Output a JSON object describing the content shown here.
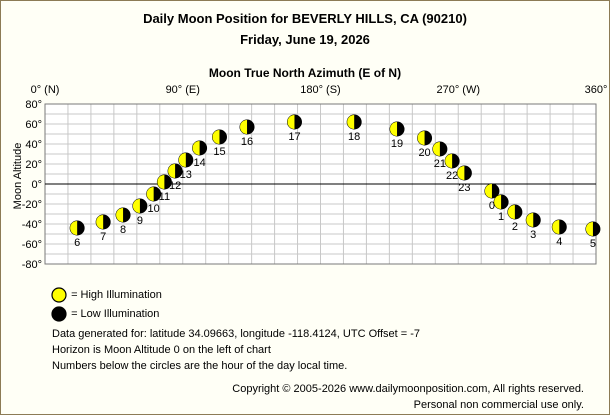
{
  "header": {
    "title": "Daily Moon Position for BEVERLY HILLS, CA (90210)",
    "date": "Friday, June 19, 2026"
  },
  "chart_data": {
    "type": "scatter",
    "title": "Daily Moon Position for BEVERLY HILLS, CA (90210)",
    "subtitle": "Friday, June 19, 2026",
    "xlabel": "Moon True North Azimuth (E of N)",
    "ylabel": "Moon Altitude",
    "xlim": [
      0,
      360
    ],
    "ylim": [
      -80,
      80
    ],
    "x_ticks": [
      {
        "value": 0,
        "label": "0° (N)"
      },
      {
        "value": 90,
        "label": "90° (E)"
      },
      {
        "value": 180,
        "label": "180° (S)"
      },
      {
        "value": 270,
        "label": "270° (W)"
      },
      {
        "value": 360,
        "label": "360°"
      }
    ],
    "y_ticks": [
      {
        "value": 80,
        "label": "80°"
      },
      {
        "value": 60,
        "label": "60°"
      },
      {
        "value": 40,
        "label": "40°"
      },
      {
        "value": 20,
        "label": "20°"
      },
      {
        "value": 0,
        "label": "0°"
      },
      {
        "value": -20,
        "label": "-20°"
      },
      {
        "value": -40,
        "label": "-40°"
      },
      {
        "value": -60,
        "label": "-60°"
      },
      {
        "value": -80,
        "label": "-80°"
      }
    ],
    "grid": true,
    "horizon_line": 0,
    "points": [
      {
        "hour": "0",
        "az": 292,
        "alt": -7
      },
      {
        "hour": "1",
        "az": 298,
        "alt": -18
      },
      {
        "hour": "2",
        "az": 307,
        "alt": -28
      },
      {
        "hour": "3",
        "az": 319,
        "alt": -36
      },
      {
        "hour": "4",
        "az": 336,
        "alt": -43
      },
      {
        "hour": "5",
        "az": 358,
        "alt": -45
      },
      {
        "hour": "6",
        "az": 21,
        "alt": -44
      },
      {
        "hour": "7",
        "az": 38,
        "alt": -38
      },
      {
        "hour": "8",
        "az": 51,
        "alt": -31
      },
      {
        "hour": "9",
        "az": 62,
        "alt": -22
      },
      {
        "hour": "10",
        "az": 71,
        "alt": -10
      },
      {
        "hour": "11",
        "az": 78,
        "alt": 2
      },
      {
        "hour": "12",
        "az": 85,
        "alt": 13
      },
      {
        "hour": "13",
        "az": 92,
        "alt": 24
      },
      {
        "hour": "14",
        "az": 101,
        "alt": 36
      },
      {
        "hour": "15",
        "az": 114,
        "alt": 47
      },
      {
        "hour": "16",
        "az": 132,
        "alt": 57
      },
      {
        "hour": "17",
        "az": 163,
        "alt": 62
      },
      {
        "hour": "18",
        "az": 202,
        "alt": 62
      },
      {
        "hour": "19",
        "az": 230,
        "alt": 55
      },
      {
        "hour": "20",
        "az": 248,
        "alt": 46
      },
      {
        "hour": "21",
        "az": 258,
        "alt": 35
      },
      {
        "hour": "22",
        "az": 266,
        "alt": 23
      },
      {
        "hour": "23",
        "az": 274,
        "alt": 11
      }
    ],
    "colors": {
      "grid": "#c8c8c8",
      "axis": "#7a7a7a",
      "high_illumination": "#ffff00",
      "low_illumination": "#000000"
    }
  },
  "legend": {
    "high": "= High Illumination",
    "low": "= Low Illumination"
  },
  "info": {
    "line1": "Data generated for: latitude 34.09663, longitude -118.4124, UTC Offset = -7",
    "line2": "Horizon is Moon Altitude 0 on the left of chart",
    "line3": "Numbers below the circles are the hour of the day local time."
  },
  "footer": {
    "copyright": "Copyright © 2005-2026 www.dailymoonposition.com, All rights reserved.",
    "note": "Personal non commercial use only."
  }
}
